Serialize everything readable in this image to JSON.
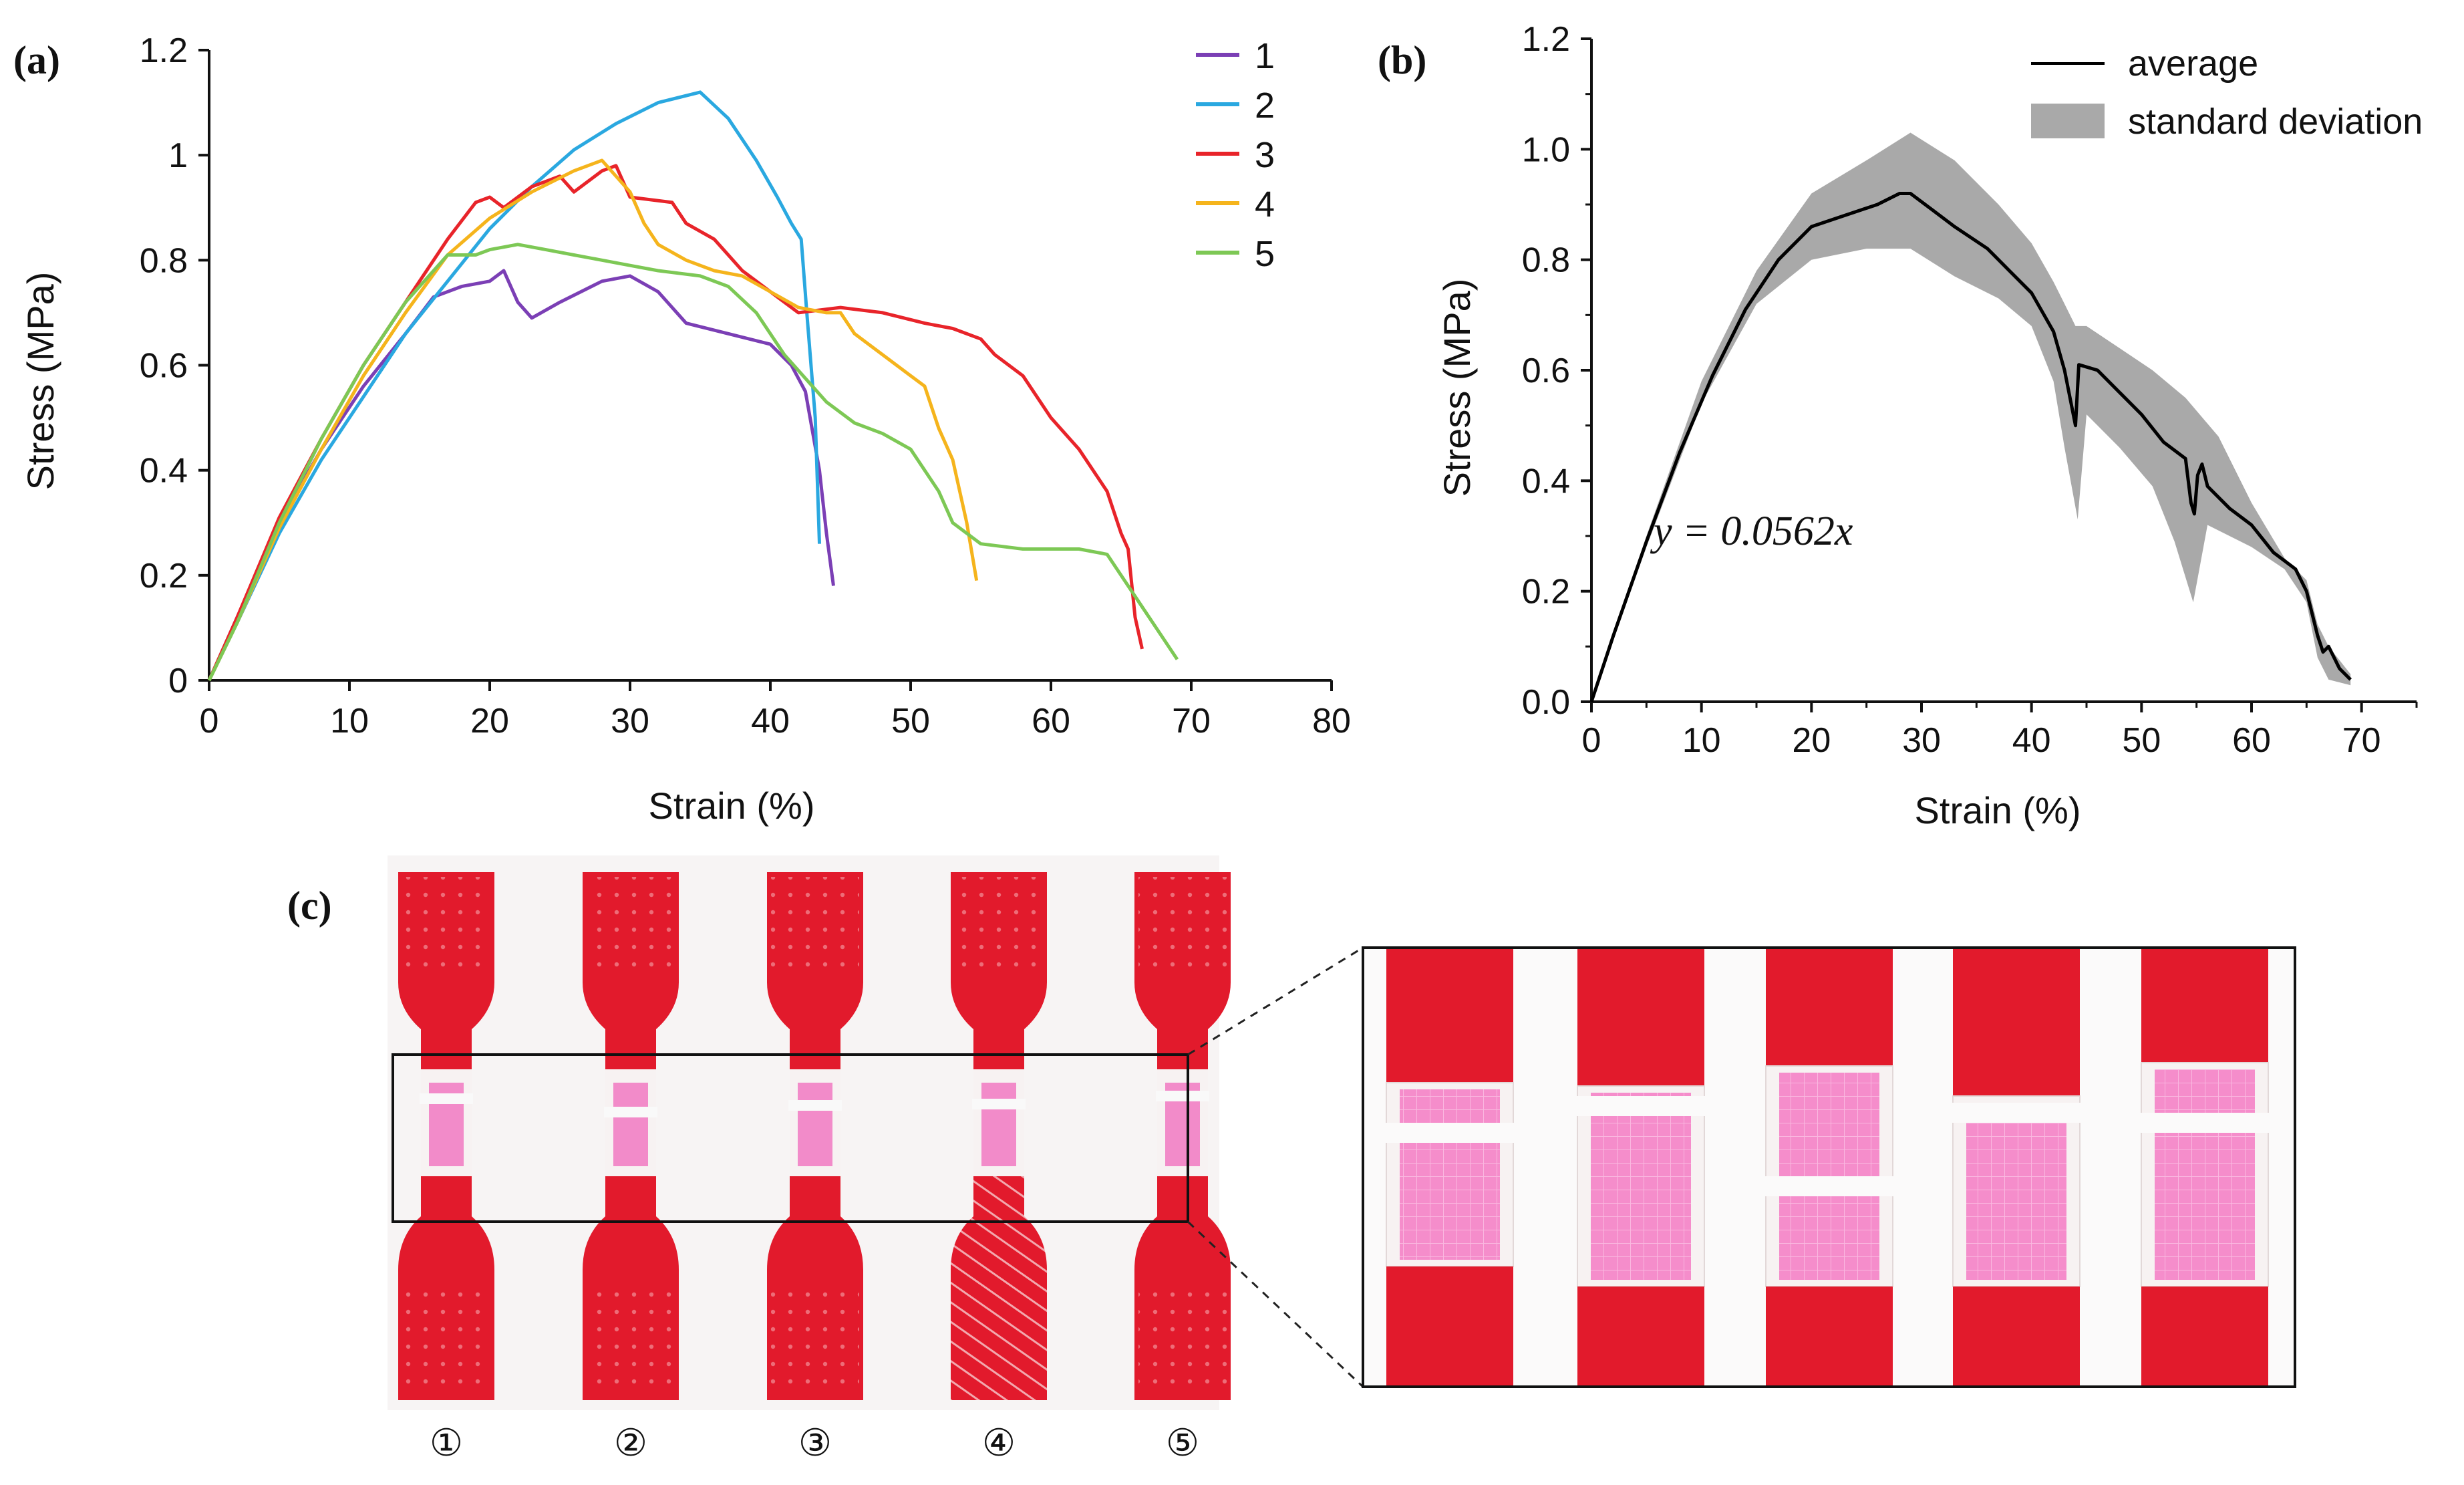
{
  "chart_data": [
    {
      "panel": "(a)",
      "type": "line",
      "xlabel": "Strain (%)",
      "ylabel": "Stress (MPa)",
      "xlim": [
        0,
        80
      ],
      "ylim": [
        0,
        1.2
      ],
      "xticks": [
        "0",
        "10",
        "20",
        "30",
        "40",
        "50",
        "60",
        "70",
        "80"
      ],
      "yticks": [
        "0",
        "0.2",
        "0.4",
        "0.6",
        "0.8",
        "1",
        "1.2"
      ],
      "legend_position": "top-right",
      "series": [
        {
          "name": "1",
          "color": "#7B3FB5",
          "points": [
            [
              0,
              0
            ],
            [
              2,
              0.12
            ],
            [
              5,
              0.3
            ],
            [
              8,
              0.44
            ],
            [
              11,
              0.56
            ],
            [
              14,
              0.66
            ],
            [
              16,
              0.73
            ],
            [
              18,
              0.75
            ],
            [
              20,
              0.76
            ],
            [
              21,
              0.78
            ],
            [
              22,
              0.72
            ],
            [
              23,
              0.69
            ],
            [
              25,
              0.72
            ],
            [
              28,
              0.76
            ],
            [
              30,
              0.77
            ],
            [
              32,
              0.74
            ],
            [
              34,
              0.68
            ],
            [
              37,
              0.66
            ],
            [
              40,
              0.64
            ],
            [
              41.5,
              0.6
            ],
            [
              42.5,
              0.55
            ],
            [
              43.5,
              0.4
            ],
            [
              44,
              0.28
            ],
            [
              44.5,
              0.18
            ]
          ]
        },
        {
          "name": "2",
          "color": "#2AA8E0",
          "points": [
            [
              0,
              0
            ],
            [
              2,
              0.11
            ],
            [
              5,
              0.28
            ],
            [
              8,
              0.42
            ],
            [
              11,
              0.54
            ],
            [
              14,
              0.66
            ],
            [
              17,
              0.76
            ],
            [
              20,
              0.86
            ],
            [
              23,
              0.94
            ],
            [
              26,
              1.01
            ],
            [
              29,
              1.06
            ],
            [
              32,
              1.1
            ],
            [
              35,
              1.12
            ],
            [
              37,
              1.07
            ],
            [
              39,
              0.99
            ],
            [
              40.5,
              0.92
            ],
            [
              41.5,
              0.87
            ],
            [
              42.2,
              0.84
            ],
            [
              42.6,
              0.7
            ],
            [
              43.2,
              0.5
            ],
            [
              43.5,
              0.26
            ]
          ]
        },
        {
          "name": "3",
          "color": "#E8242A",
          "points": [
            [
              0,
              0
            ],
            [
              2,
              0.12
            ],
            [
              5,
              0.31
            ],
            [
              8,
              0.46
            ],
            [
              11,
              0.6
            ],
            [
              14,
              0.72
            ],
            [
              17,
              0.84
            ],
            [
              19,
              0.91
            ],
            [
              20,
              0.92
            ],
            [
              21,
              0.9
            ],
            [
              23,
              0.94
            ],
            [
              25,
              0.96
            ],
            [
              26,
              0.93
            ],
            [
              28,
              0.97
            ],
            [
              29,
              0.98
            ],
            [
              30,
              0.92
            ],
            [
              33,
              0.91
            ],
            [
              34,
              0.87
            ],
            [
              36,
              0.84
            ],
            [
              38,
              0.78
            ],
            [
              40,
              0.74
            ],
            [
              42,
              0.7
            ],
            [
              45,
              0.71
            ],
            [
              48,
              0.7
            ],
            [
              51,
              0.68
            ],
            [
              53,
              0.67
            ],
            [
              55,
              0.65
            ],
            [
              56,
              0.62
            ],
            [
              58,
              0.58
            ],
            [
              60,
              0.5
            ],
            [
              62,
              0.44
            ],
            [
              64,
              0.36
            ],
            [
              65,
              0.28
            ],
            [
              65.5,
              0.25
            ],
            [
              66,
              0.12
            ],
            [
              66.5,
              0.06
            ]
          ]
        },
        {
          "name": "4",
          "color": "#F5B41C",
          "points": [
            [
              0,
              0
            ],
            [
              2,
              0.11
            ],
            [
              5,
              0.29
            ],
            [
              8,
              0.44
            ],
            [
              11,
              0.58
            ],
            [
              14,
              0.7
            ],
            [
              17,
              0.81
            ],
            [
              20,
              0.88
            ],
            [
              23,
              0.93
            ],
            [
              26,
              0.97
            ],
            [
              28,
              0.99
            ],
            [
              29,
              0.96
            ],
            [
              30,
              0.93
            ],
            [
              31,
              0.87
            ],
            [
              32,
              0.83
            ],
            [
              34,
              0.8
            ],
            [
              36,
              0.78
            ],
            [
              38,
              0.77
            ],
            [
              40,
              0.74
            ],
            [
              42,
              0.71
            ],
            [
              44,
              0.7
            ],
            [
              45,
              0.7
            ],
            [
              46,
              0.66
            ],
            [
              48,
              0.62
            ],
            [
              50,
              0.58
            ],
            [
              51,
              0.56
            ],
            [
              52,
              0.48
            ],
            [
              53,
              0.42
            ],
            [
              54,
              0.3
            ],
            [
              54.7,
              0.19
            ]
          ]
        },
        {
          "name": "5",
          "color": "#7DC855",
          "points": [
            [
              0,
              0
            ],
            [
              2,
              0.11
            ],
            [
              5,
              0.3
            ],
            [
              8,
              0.46
            ],
            [
              11,
              0.6
            ],
            [
              14,
              0.72
            ],
            [
              16,
              0.78
            ],
            [
              17,
              0.81
            ],
            [
              19,
              0.81
            ],
            [
              20,
              0.82
            ],
            [
              22,
              0.83
            ],
            [
              24,
              0.82
            ],
            [
              26,
              0.81
            ],
            [
              28,
              0.8
            ],
            [
              30,
              0.79
            ],
            [
              32,
              0.78
            ],
            [
              35,
              0.77
            ],
            [
              37,
              0.75
            ],
            [
              39,
              0.7
            ],
            [
              41,
              0.62
            ],
            [
              43,
              0.56
            ],
            [
              44,
              0.53
            ],
            [
              46,
              0.49
            ],
            [
              48,
              0.47
            ],
            [
              50,
              0.44
            ],
            [
              52,
              0.36
            ],
            [
              53,
              0.3
            ],
            [
              54,
              0.28
            ],
            [
              55,
              0.26
            ],
            [
              58,
              0.25
            ],
            [
              62,
              0.25
            ],
            [
              64,
              0.24
            ],
            [
              66,
              0.16
            ],
            [
              68,
              0.08
            ],
            [
              69,
              0.04
            ]
          ]
        }
      ]
    },
    {
      "panel": "(b)",
      "type": "line",
      "xlabel": "Strain (%)",
      "ylabel": "Stress (MPa)",
      "xlim": [
        0,
        75
      ],
      "ylim": [
        0,
        1.2
      ],
      "xticks": [
        "0",
        "10",
        "20",
        "30",
        "40",
        "50",
        "60",
        "70"
      ],
      "yticks": [
        "0.0",
        "0.2",
        "0.4",
        "0.6",
        "0.8",
        "1.0",
        "1.2"
      ],
      "legend": [
        "average",
        "standard deviation"
      ],
      "legend_position": "top-right",
      "annotation": "y = 0.0562x",
      "series": [
        {
          "name": "average",
          "color": "#000000",
          "points": [
            [
              0,
              0
            ],
            [
              2,
              0.12
            ],
            [
              5,
              0.29
            ],
            [
              8,
              0.45
            ],
            [
              11,
              0.59
            ],
            [
              14,
              0.71
            ],
            [
              17,
              0.8
            ],
            [
              20,
              0.86
            ],
            [
              23,
              0.88
            ],
            [
              26,
              0.9
            ],
            [
              28,
              0.92
            ],
            [
              29,
              0.92
            ],
            [
              31,
              0.89
            ],
            [
              33,
              0.86
            ],
            [
              36,
              0.82
            ],
            [
              38,
              0.78
            ],
            [
              40,
              0.74
            ],
            [
              42,
              0.67
            ],
            [
              43,
              0.6
            ],
            [
              43.5,
              0.55
            ],
            [
              44,
              0.5
            ],
            [
              44.3,
              0.61
            ],
            [
              46,
              0.6
            ],
            [
              48,
              0.56
            ],
            [
              50,
              0.52
            ],
            [
              52,
              0.47
            ],
            [
              54,
              0.44
            ],
            [
              54.5,
              0.36
            ],
            [
              54.8,
              0.34
            ],
            [
              55.1,
              0.41
            ],
            [
              55.5,
              0.43
            ],
            [
              56,
              0.39
            ],
            [
              58,
              0.35
            ],
            [
              60,
              0.32
            ],
            [
              62,
              0.27
            ],
            [
              64,
              0.24
            ],
            [
              65,
              0.2
            ],
            [
              66,
              0.12
            ],
            [
              66.5,
              0.09
            ],
            [
              67,
              0.1
            ],
            [
              68,
              0.06
            ],
            [
              69,
              0.04
            ]
          ]
        },
        {
          "name": "standard deviation",
          "color": "#A9A9A9",
          "upper": [
            [
              0,
              0
            ],
            [
              5,
              0.3
            ],
            [
              10,
              0.58
            ],
            [
              15,
              0.78
            ],
            [
              20,
              0.92
            ],
            [
              25,
              0.98
            ],
            [
              29,
              1.03
            ],
            [
              33,
              0.98
            ],
            [
              37,
              0.9
            ],
            [
              40,
              0.83
            ],
            [
              42,
              0.76
            ],
            [
              43,
              0.72
            ],
            [
              44,
              0.68
            ],
            [
              45,
              0.68
            ],
            [
              48,
              0.64
            ],
            [
              51,
              0.6
            ],
            [
              54,
              0.55
            ],
            [
              57,
              0.48
            ],
            [
              60,
              0.36
            ],
            [
              63,
              0.26
            ],
            [
              65,
              0.22
            ],
            [
              66,
              0.14
            ],
            [
              67,
              0.1
            ],
            [
              69,
              0.05
            ]
          ],
          "lower": [
            [
              0,
              0
            ],
            [
              5,
              0.28
            ],
            [
              10,
              0.54
            ],
            [
              15,
              0.72
            ],
            [
              20,
              0.8
            ],
            [
              25,
              0.82
            ],
            [
              29,
              0.82
            ],
            [
              33,
              0.77
            ],
            [
              37,
              0.73
            ],
            [
              40,
              0.68
            ],
            [
              42,
              0.58
            ],
            [
              43,
              0.46
            ],
            [
              44.2,
              0.33
            ],
            [
              45,
              0.52
            ],
            [
              48,
              0.46
            ],
            [
              51,
              0.39
            ],
            [
              53,
              0.29
            ],
            [
              54.7,
              0.18
            ],
            [
              56,
              0.32
            ],
            [
              60,
              0.28
            ],
            [
              63,
              0.24
            ],
            [
              65,
              0.18
            ],
            [
              66,
              0.08
            ],
            [
              67,
              0.04
            ],
            [
              69,
              0.03
            ]
          ]
        }
      ]
    }
  ],
  "panel_c": {
    "label": "(c)",
    "sample_labels": [
      "①",
      "②",
      "③",
      "④",
      "⑤"
    ],
    "colors": {
      "red": "#E21A2C",
      "pink": "#F28BC9",
      "clear": "#F7F2F2"
    }
  }
}
